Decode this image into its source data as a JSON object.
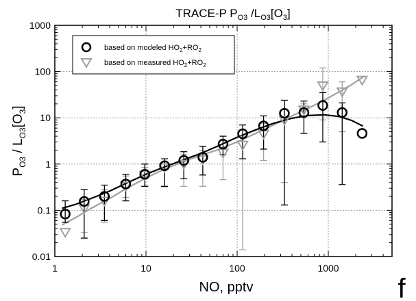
{
  "chart_data": {
    "type": "scatter",
    "title_main": "TRACE-P P",
    "title_sub1": "O3",
    "title_mid": " /L",
    "title_sub2": "O3",
    "title_bracket_open": "[O",
    "title_sub3": "3",
    "title_bracket_close": "]",
    "xlabel": "NO, pptv",
    "ylabel_p": "P",
    "ylabel_sub1": "O3",
    "ylabel_mid": " / L",
    "ylabel_sub2": "O3",
    "ylabel_open": "[O",
    "ylabel_sub3": "3",
    "ylabel_close": "]",
    "panel_label": "f",
    "x_scale": "log",
    "y_scale": "log",
    "xlim": [
      1,
      5000
    ],
    "ylim": [
      0.01,
      1000
    ],
    "grid": true,
    "legend_position": "top-left",
    "x_ticks": [
      {
        "value": 1,
        "label": "1"
      },
      {
        "value": 10,
        "label": "10"
      },
      {
        "value": 100,
        "label": "100"
      },
      {
        "value": 1000,
        "label": "1000"
      }
    ],
    "y_ticks": [
      {
        "value": 0.01,
        "label": "0.01"
      },
      {
        "value": 0.1,
        "label": "0.1"
      },
      {
        "value": 1,
        "label": "1"
      },
      {
        "value": 10,
        "label": "10"
      },
      {
        "value": 100,
        "label": "100"
      },
      {
        "value": 1000,
        "label": "1000"
      }
    ],
    "series": [
      {
        "name": "based on modeled HO₂+RO₂",
        "legend_text": "based on modeled HO",
        "legend_sub": "2",
        "legend_tail": "+RO",
        "legend_sub2": "2",
        "marker": "circle",
        "color": "#000000",
        "x": [
          1.3,
          2.1,
          3.5,
          6.0,
          9.7,
          16,
          26,
          42,
          70,
          115,
          195,
          330,
          540,
          870,
          1420,
          2350
        ],
        "y": [
          0.083,
          0.155,
          0.2,
          0.37,
          0.6,
          0.92,
          1.2,
          1.4,
          2.7,
          4.5,
          6.7,
          12.5,
          13,
          18.5,
          13,
          4.6
        ],
        "err_low": [
          0.055,
          0.025,
          0.06,
          0.16,
          0.33,
          0.33,
          0.48,
          0.58,
          1.6,
          1.3,
          2.1,
          0.13,
          4.6,
          3.0,
          0.36,
          null
        ],
        "err_high": [
          0.16,
          0.28,
          0.35,
          0.6,
          1.0,
          1.3,
          1.85,
          2.4,
          4.0,
          7.0,
          11,
          24,
          23,
          35,
          21,
          null
        ],
        "fit_x": [
          1.2,
          1.7,
          2.5,
          4,
          6,
          10,
          16,
          25,
          40,
          60,
          100,
          160,
          250,
          400,
          600,
          900,
          1300,
          1800,
          2400
        ],
        "fit_y": [
          0.11,
          0.135,
          0.18,
          0.26,
          0.38,
          0.6,
          0.87,
          1.2,
          1.7,
          2.4,
          3.8,
          5.5,
          7.6,
          9.8,
          11.2,
          11.6,
          10.7,
          8.8,
          6.6
        ]
      },
      {
        "name": "based on measured HO₂+RO₂",
        "legend_text": "based on measured HO",
        "legend_sub": "2",
        "legend_tail": "+RO",
        "legend_sub2": "2",
        "marker": "triangle-down",
        "color": "#a0a0a0",
        "x": [
          1.3,
          2.1,
          3.5,
          6.0,
          9.7,
          16,
          26,
          42,
          70,
          115,
          195,
          330,
          540,
          870,
          1420,
          2350
        ],
        "y": [
          0.034,
          0.11,
          0.16,
          0.34,
          0.58,
          0.85,
          1.0,
          1.25,
          1.75,
          2.6,
          4.5,
          9.0,
          15,
          50,
          37,
          66
        ],
        "err_low": [
          null,
          0.033,
          0.055,
          0.19,
          0.33,
          0.32,
          0.33,
          0.33,
          0.46,
          0.014,
          1.2,
          0.4,
          11,
          9.0,
          5.0,
          null
        ],
        "err_high": [
          null,
          0.17,
          0.28,
          0.55,
          0.85,
          1.1,
          1.6,
          1.95,
          3.2,
          4.0,
          7.5,
          15,
          20,
          120,
          60,
          null
        ],
        "fit_x": [
          1.2,
          1.7,
          2.5,
          4,
          6,
          10,
          16,
          25,
          40,
          60,
          100,
          160,
          250,
          400,
          600,
          900,
          1300,
          1800,
          2500
        ],
        "fit_y": [
          0.048,
          0.07,
          0.11,
          0.18,
          0.29,
          0.5,
          0.78,
          1.1,
          1.55,
          2.0,
          3.0,
          4.6,
          7.0,
          11,
          16,
          24,
          36,
          52,
          80
        ]
      }
    ]
  }
}
